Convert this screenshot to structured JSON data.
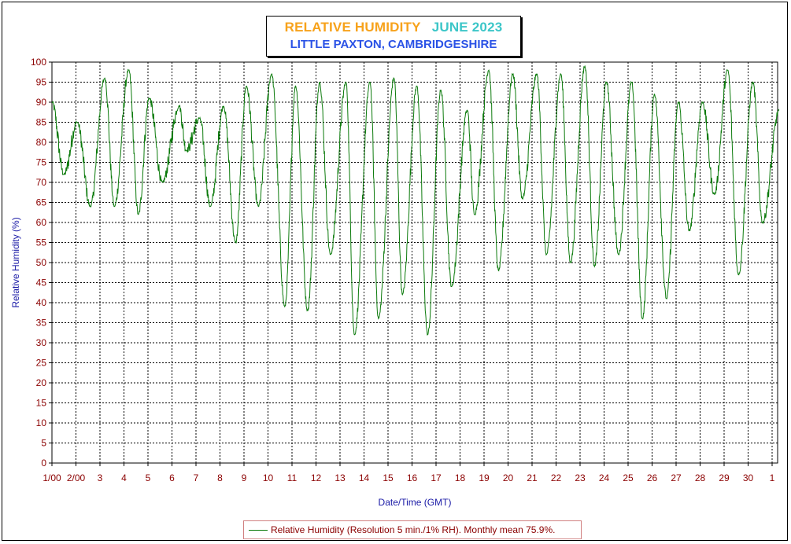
{
  "title": {
    "main": "RELATIVE HUMIDITY",
    "date": "JUNE 2023",
    "subtitle": "LITTLE PAXTON, CAMBRIDGESHIRE"
  },
  "colors": {
    "title_main": "#f7a21b",
    "title_date": "#3cc6c8",
    "subtitle": "#2a52e6",
    "series": "#0b7a0b",
    "tick_text": "#8b0000",
    "axis_label": "#1a1aa6"
  },
  "chart_data": {
    "type": "line",
    "title": "RELATIVE HUMIDITY JUNE 2023",
    "subtitle": "LITTLE PAXTON, CAMBRIDGESHIRE",
    "xlabel": "Date/Time (GMT)",
    "ylabel": "Relative Humidity (%)",
    "ylim": [
      0,
      100
    ],
    "xlim_days": [
      0,
      30.3
    ],
    "grid": true,
    "legend_position": "bottom",
    "x_tick_labels": [
      "1/00",
      "2/00",
      "3",
      "4",
      "5",
      "6",
      "7",
      "8",
      "9",
      "10",
      "11",
      "12",
      "13",
      "14",
      "15",
      "16",
      "17",
      "18",
      "19",
      "20",
      "21",
      "22",
      "23",
      "24",
      "25",
      "26",
      "27",
      "28",
      "29",
      "30",
      "1"
    ],
    "y_ticks": [
      0,
      5,
      10,
      15,
      20,
      25,
      30,
      35,
      40,
      45,
      50,
      55,
      60,
      65,
      70,
      75,
      80,
      85,
      90,
      95,
      100
    ],
    "series": [
      {
        "name": "Relative Humidity (Resolution 5 min./1% RH). Monthly mean 75.9%.",
        "x_unit": "days since 1 June 00:00 GMT",
        "daily_max_x": [
          0.0,
          1.05,
          2.2,
          3.2,
          4.05,
          5.3,
          6.15,
          7.15,
          8.1,
          9.15,
          10.15,
          11.15,
          12.25,
          13.25,
          14.25,
          15.2,
          16.2,
          17.3,
          18.2,
          19.2,
          20.2,
          21.2,
          22.2,
          23.1,
          24.15,
          25.1,
          26.1,
          27.1,
          28.15,
          29.2,
          30.3
        ],
        "daily_max_y": [
          90,
          85,
          96,
          98,
          91,
          89,
          86,
          89,
          94,
          97,
          94,
          95,
          95,
          95,
          96,
          94,
          93,
          88,
          98,
          97,
          97,
          97,
          99,
          95,
          95,
          92,
          90,
          90,
          98,
          95,
          88
        ],
        "daily_min_x": [
          0.5,
          1.6,
          2.6,
          3.6,
          4.6,
          5.6,
          6.6,
          7.65,
          8.6,
          9.7,
          10.65,
          11.6,
          12.6,
          13.6,
          14.6,
          15.65,
          16.65,
          17.6,
          18.6,
          19.6,
          20.6,
          21.6,
          22.6,
          23.6,
          24.6,
          25.6,
          26.55,
          27.6,
          28.6,
          29.6
        ],
        "daily_min_y": [
          72,
          64,
          64,
          62,
          70,
          78,
          64,
          55,
          64,
          39,
          38,
          52,
          32,
          36,
          42,
          32,
          44,
          62,
          48,
          66,
          52,
          50,
          49,
          52,
          36,
          41,
          58,
          67,
          47,
          60
        ]
      }
    ]
  }
}
